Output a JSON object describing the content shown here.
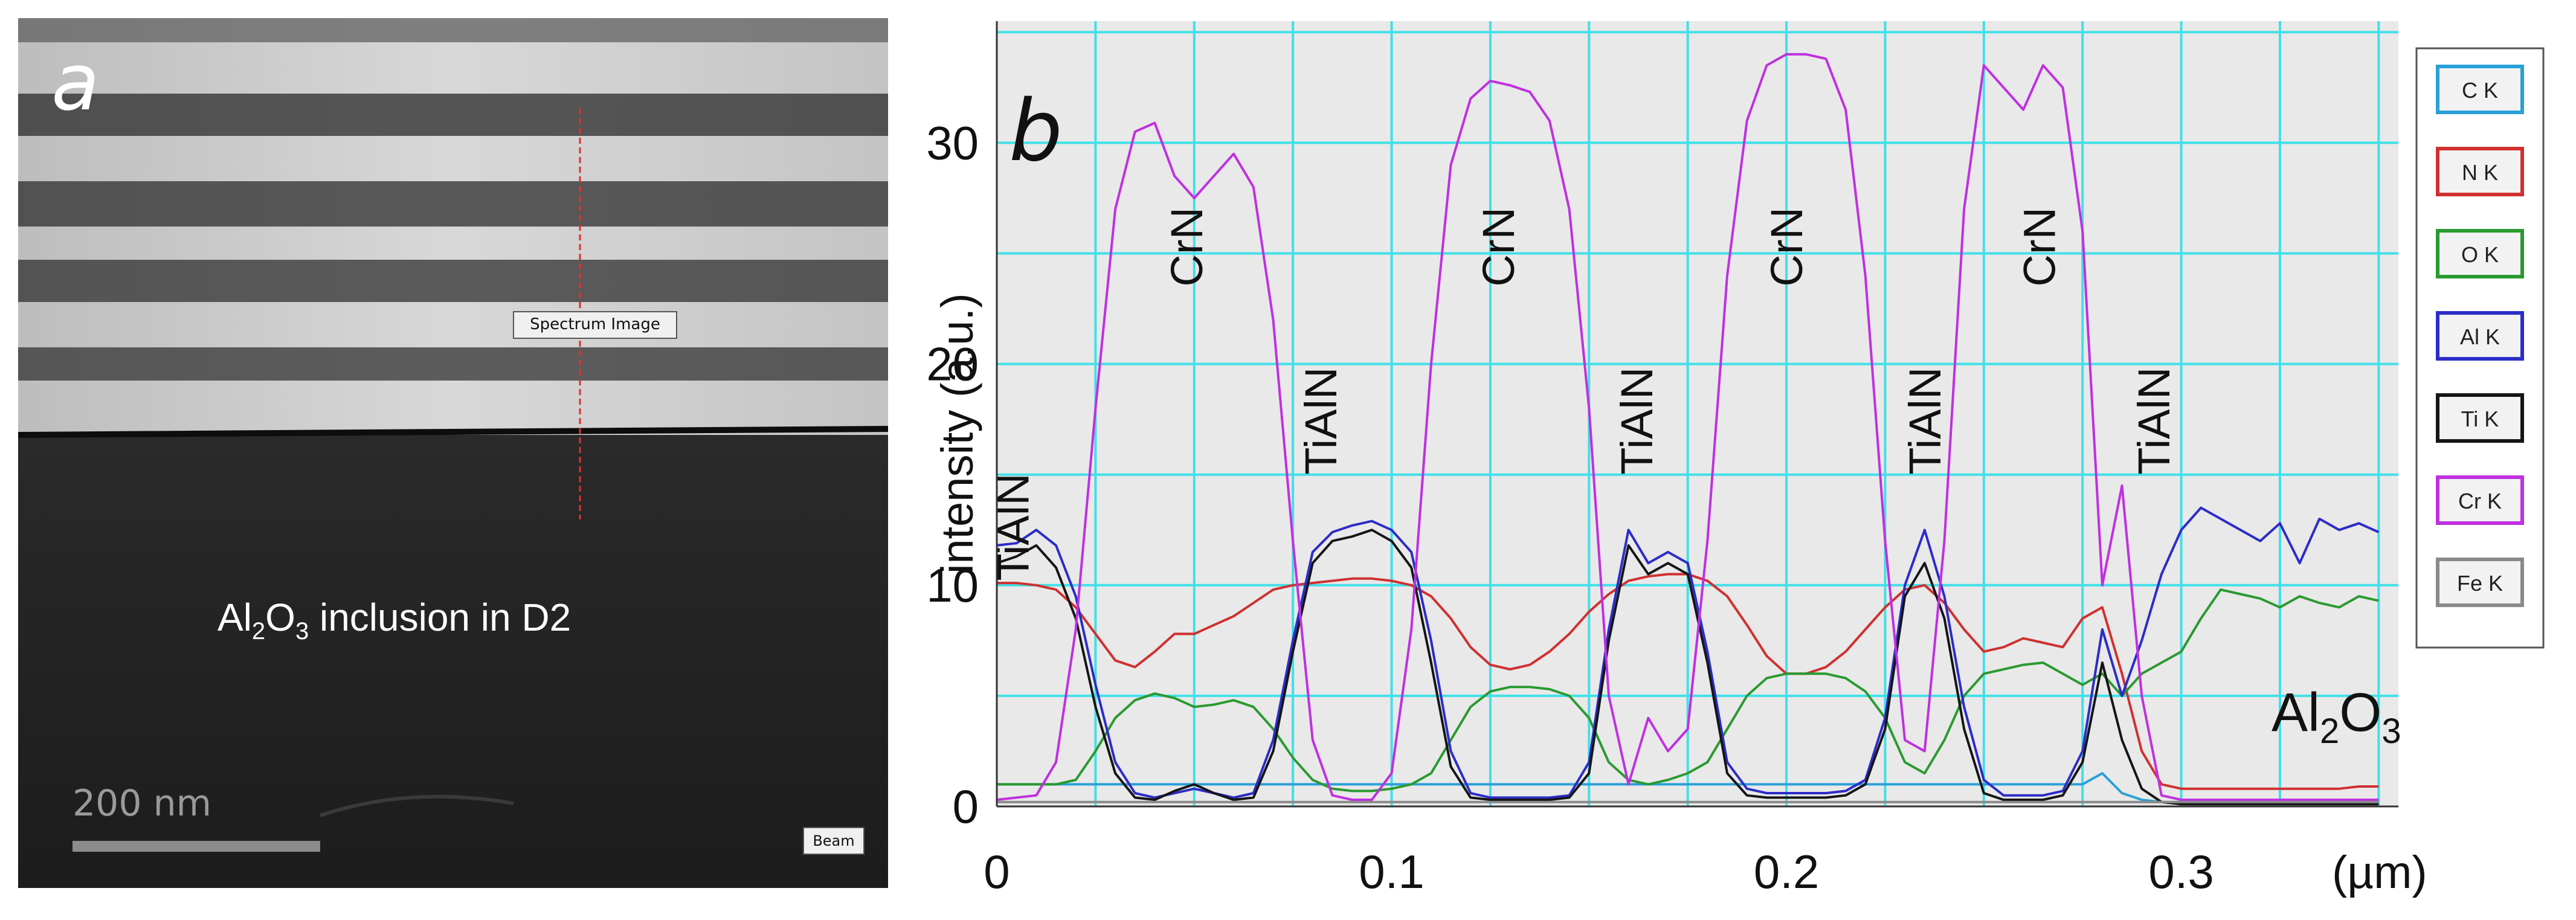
{
  "panel_a": {
    "letter": "a",
    "spectrum_label": "Spectrum Image",
    "beam_label": "Beam",
    "scale_bar_label": "200 nm",
    "caption_parts": [
      "Al",
      "2",
      "O",
      "3",
      " inclusion in D2"
    ],
    "scan_line_color": "#e03030"
  },
  "chart_data": {
    "type": "line",
    "panel_letter": "b",
    "ylabel": "intensity (a.u.)",
    "xunit": "(µm)",
    "x_ticks": [
      0,
      0.1,
      0.2,
      0.3
    ],
    "x_tick_labels": [
      "0",
      "0.1",
      "0.2",
      "0.3"
    ],
    "y_ticks": [
      0,
      10,
      20,
      30
    ],
    "y_tick_labels": [
      "0",
      "10",
      "20",
      "30"
    ],
    "xlim": [
      0,
      0.355
    ],
    "ylim": [
      0,
      35.5
    ],
    "grid": true,
    "grid_color": "#40e0e8",
    "plot_bg": "#e9e9e9",
    "x": [
      0.0,
      0.005,
      0.01,
      0.015,
      0.02,
      0.025,
      0.03,
      0.035,
      0.04,
      0.045,
      0.05,
      0.055,
      0.06,
      0.065,
      0.07,
      0.075,
      0.08,
      0.085,
      0.09,
      0.095,
      0.1,
      0.105,
      0.11,
      0.115,
      0.12,
      0.125,
      0.13,
      0.135,
      0.14,
      0.145,
      0.15,
      0.155,
      0.16,
      0.165,
      0.17,
      0.175,
      0.18,
      0.185,
      0.19,
      0.195,
      0.2,
      0.205,
      0.21,
      0.215,
      0.22,
      0.225,
      0.23,
      0.235,
      0.24,
      0.245,
      0.25,
      0.255,
      0.26,
      0.265,
      0.27,
      0.275,
      0.28,
      0.285,
      0.29,
      0.295,
      0.3,
      0.305,
      0.31,
      0.315,
      0.32,
      0.325,
      0.33,
      0.335,
      0.34,
      0.345,
      0.35
    ],
    "series": [
      {
        "name": "C K",
        "color": "#2aa0d8",
        "values": [
          1.0,
          1.0,
          1.0,
          1.0,
          1.0,
          1.0,
          1.0,
          1.0,
          1.0,
          1.0,
          1.0,
          1.0,
          1.0,
          1.0,
          1.0,
          1.0,
          1.0,
          1.0,
          1.0,
          1.0,
          1.0,
          1.0,
          1.0,
          1.0,
          1.0,
          1.0,
          1.0,
          1.0,
          1.0,
          1.0,
          1.0,
          1.0,
          1.0,
          1.0,
          1.0,
          1.0,
          1.0,
          1.0,
          1.0,
          1.0,
          1.0,
          1.0,
          1.0,
          1.0,
          1.0,
          1.0,
          1.0,
          1.0,
          1.0,
          1.0,
          1.0,
          1.0,
          1.0,
          1.0,
          1.0,
          1.0,
          1.5,
          0.6,
          0.3,
          0.2,
          0.2,
          0.2,
          0.2,
          0.2,
          0.2,
          0.2,
          0.2,
          0.2,
          0.2,
          0.2,
          0.2
        ]
      },
      {
        "name": "N K",
        "color": "#d03030",
        "values": [
          10.1,
          10.1,
          10.0,
          9.8,
          9.0,
          7.8,
          6.6,
          6.3,
          7.0,
          7.8,
          7.8,
          8.2,
          8.6,
          9.2,
          9.8,
          10.0,
          10.1,
          10.2,
          10.3,
          10.3,
          10.2,
          10.0,
          9.5,
          8.5,
          7.2,
          6.4,
          6.2,
          6.4,
          7.0,
          7.8,
          8.8,
          9.6,
          10.2,
          10.4,
          10.5,
          10.5,
          10.2,
          9.5,
          8.2,
          6.8,
          6.0,
          6.0,
          6.3,
          7.0,
          8.0,
          9.0,
          9.8,
          10.0,
          9.2,
          8.0,
          7.0,
          7.2,
          7.6,
          7.4,
          7.2,
          8.5,
          9.0,
          6.0,
          2.5,
          1.0,
          0.8,
          0.8,
          0.8,
          0.8,
          0.8,
          0.8,
          0.8,
          0.8,
          0.8,
          0.9,
          0.9
        ]
      },
      {
        "name": "O K",
        "color": "#2a9a30",
        "values": [
          1.0,
          1.0,
          1.0,
          1.0,
          1.2,
          2.5,
          4.0,
          4.8,
          5.1,
          4.9,
          4.5,
          4.6,
          4.8,
          4.5,
          3.5,
          2.2,
          1.2,
          0.8,
          0.7,
          0.7,
          0.8,
          1.0,
          1.5,
          3.0,
          4.5,
          5.2,
          5.4,
          5.4,
          5.3,
          5.0,
          4.0,
          2.0,
          1.2,
          1.0,
          1.2,
          1.5,
          2.0,
          3.5,
          5.0,
          5.8,
          6.0,
          6.0,
          6.0,
          5.8,
          5.2,
          4.0,
          2.0,
          1.5,
          3.0,
          5.0,
          6.0,
          6.2,
          6.4,
          6.5,
          6.0,
          5.5,
          6.0,
          5.0,
          6.0,
          6.5,
          7.0,
          8.5,
          9.8,
          9.6,
          9.4,
          9.0,
          9.5,
          9.2,
          9.0,
          9.5,
          9.3
        ]
      },
      {
        "name": "Al K",
        "color": "#2c2cc8",
        "values": [
          11.8,
          11.9,
          12.5,
          11.8,
          9.5,
          5.5,
          2.0,
          0.6,
          0.4,
          0.6,
          0.8,
          0.6,
          0.4,
          0.6,
          3.0,
          7.5,
          11.5,
          12.4,
          12.7,
          12.9,
          12.5,
          11.5,
          7.5,
          2.5,
          0.6,
          0.4,
          0.4,
          0.4,
          0.4,
          0.5,
          2.0,
          8.0,
          12.5,
          11.0,
          11.5,
          11.0,
          7.0,
          2.0,
          0.8,
          0.6,
          0.6,
          0.6,
          0.6,
          0.7,
          1.2,
          4.0,
          10.0,
          12.5,
          9.5,
          4.5,
          1.2,
          0.5,
          0.5,
          0.5,
          0.7,
          2.5,
          8.0,
          5.0,
          7.5,
          10.5,
          12.5,
          13.5,
          13.0,
          12.5,
          12.0,
          12.8,
          11.0,
          13.0,
          12.5,
          12.8,
          12.4
        ]
      },
      {
        "name": "Ti K",
        "color": "#151515",
        "values": [
          11.0,
          11.3,
          11.8,
          10.8,
          8.5,
          4.5,
          1.5,
          0.4,
          0.3,
          0.7,
          1.0,
          0.6,
          0.3,
          0.4,
          2.5,
          7.0,
          11.0,
          12.0,
          12.2,
          12.5,
          12.0,
          10.8,
          6.5,
          1.8,
          0.4,
          0.3,
          0.3,
          0.3,
          0.3,
          0.4,
          1.5,
          7.5,
          11.8,
          10.5,
          11.0,
          10.5,
          6.5,
          1.5,
          0.5,
          0.4,
          0.4,
          0.4,
          0.4,
          0.5,
          1.0,
          3.5,
          9.5,
          11.0,
          8.5,
          3.5,
          0.6,
          0.3,
          0.3,
          0.3,
          0.5,
          2.0,
          6.5,
          3.0,
          0.8,
          0.2,
          0.1,
          0.1,
          0.1,
          0.1,
          0.1,
          0.1,
          0.1,
          0.1,
          0.1,
          0.1,
          0.1
        ]
      },
      {
        "name": "Cr K",
        "color": "#c030e0",
        "values": [
          0.3,
          0.4,
          0.5,
          2.0,
          8.0,
          18.0,
          27.0,
          30.5,
          30.9,
          28.5,
          27.5,
          28.5,
          29.5,
          28.0,
          22.0,
          12.0,
          3.0,
          0.5,
          0.3,
          0.3,
          1.5,
          8.0,
          20.0,
          29.0,
          32.0,
          32.8,
          32.6,
          32.3,
          31.0,
          27.0,
          18.0,
          5.0,
          1.0,
          4.0,
          2.5,
          3.5,
          12.0,
          24.0,
          31.0,
          33.5,
          34.0,
          34.0,
          33.8,
          31.5,
          24.0,
          12.0,
          3.0,
          2.5,
          12.0,
          27.0,
          33.5,
          32.5,
          31.5,
          33.5,
          32.5,
          26.0,
          10.0,
          14.5,
          5.0,
          0.5,
          0.3,
          0.3,
          0.3,
          0.3,
          0.3,
          0.3,
          0.3,
          0.3,
          0.3,
          0.3,
          0.3
        ]
      },
      {
        "name": "Fe K",
        "color": "#8a8a8a",
        "values": [
          0.2,
          0.2,
          0.2,
          0.2,
          0.2,
          0.2,
          0.2,
          0.2,
          0.2,
          0.2,
          0.2,
          0.2,
          0.2,
          0.2,
          0.2,
          0.2,
          0.2,
          0.2,
          0.2,
          0.2,
          0.2,
          0.2,
          0.2,
          0.2,
          0.2,
          0.2,
          0.2,
          0.2,
          0.2,
          0.2,
          0.2,
          0.2,
          0.2,
          0.2,
          0.2,
          0.2,
          0.2,
          0.2,
          0.2,
          0.2,
          0.2,
          0.2,
          0.2,
          0.2,
          0.2,
          0.2,
          0.2,
          0.2,
          0.2,
          0.2,
          0.2,
          0.2,
          0.2,
          0.2,
          0.2,
          0.2,
          0.2,
          0.2,
          0.2,
          0.2,
          0.2,
          0.2,
          0.2,
          0.2,
          0.2,
          0.2,
          0.2,
          0.2,
          0.2,
          0.2,
          0.2
        ]
      }
    ],
    "annotations": [
      {
        "text": "TiAlN",
        "x": 0.008,
        "y": 10.2
      },
      {
        "text": "CrN",
        "x": 0.052,
        "y": 23.5
      },
      {
        "text": "TiAlN",
        "x": 0.086,
        "y": 15.0
      },
      {
        "text": "CrN",
        "x": 0.131,
        "y": 23.5
      },
      {
        "text": "TiAlN",
        "x": 0.166,
        "y": 15.0
      },
      {
        "text": "CrN",
        "x": 0.204,
        "y": 23.5
      },
      {
        "text": "TiAlN",
        "x": 0.239,
        "y": 15.0
      },
      {
        "text": "CrN",
        "x": 0.268,
        "y": 23.5
      },
      {
        "text": "TiAlN",
        "x": 0.297,
        "y": 15.0
      }
    ],
    "inset_text_parts": [
      "Al",
      "2",
      "O",
      "3"
    ],
    "legend_position": "right"
  }
}
